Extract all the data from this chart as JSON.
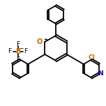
{
  "bg_color": "#ffffff",
  "line_color": "#000000",
  "bond_width": 1.3,
  "figsize": [
    1.52,
    1.52
  ],
  "dpi": 100,
  "text_color_black": "#000000",
  "text_color_blue": "#0000cc",
  "text_color_orange": "#cc6600",
  "text_O": "O",
  "text_N": "N",
  "text_Cl": "Cl",
  "plus_symbol": "+"
}
